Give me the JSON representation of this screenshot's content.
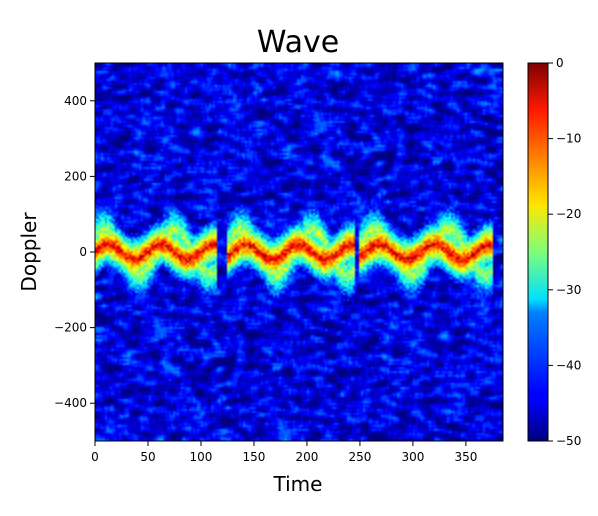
{
  "chart_data": {
    "type": "heatmap",
    "title": "Wave",
    "xlabel": "Time",
    "ylabel": "Doppler",
    "xlim": [
      0,
      385
    ],
    "ylim": [
      -500,
      500
    ],
    "x_ticks": [
      0,
      50,
      100,
      150,
      200,
      250,
      300,
      350
    ],
    "y_ticks": [
      400,
      200,
      0,
      -200,
      -400
    ],
    "y_tick_labels": [
      "400",
      "200",
      "0",
      "−200",
      "−400"
    ],
    "colorbar": {
      "colormap": "jet",
      "range": [
        -50,
        0
      ],
      "ticks": [
        0,
        -10,
        -20,
        -30,
        -40,
        -50
      ],
      "tick_labels": [
        "0",
        "−10",
        "−20",
        "−30",
        "−40",
        "−50"
      ]
    },
    "background_level_db": -37,
    "signal": {
      "description_level_db": -5,
      "dominant_periods_time": 125,
      "bursts": [
        {
          "t_start": 0,
          "t_end": 100,
          "doppler_center": 0
        },
        {
          "t_start": 130,
          "t_end": 230,
          "doppler_center": 0
        },
        {
          "t_start": 255,
          "t_end": 360,
          "doppler_center": 0
        }
      ]
    }
  }
}
